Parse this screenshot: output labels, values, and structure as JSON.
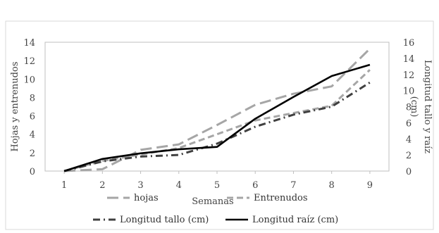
{
  "chart_data": {
    "type": "line",
    "categories": [
      "1",
      "2",
      "3",
      "4",
      "5",
      "6",
      "7",
      "8",
      "9"
    ],
    "xlabel": "Semanas",
    "ylabel_left": "Hojas y entrenudos",
    "ylabel_right": "Longitud tallo y raíz (cm)",
    "ylim_left": [
      0,
      14
    ],
    "yticks_left": [
      "0",
      "2",
      "4",
      "6",
      "8",
      "10",
      "12",
      "14"
    ],
    "ylim_right": [
      0,
      16
    ],
    "yticks_right": [
      "0",
      "2",
      "4",
      "6",
      "8",
      "10",
      "12",
      "14",
      "16"
    ],
    "grid": false,
    "legend_position": "bottom",
    "series": [
      {
        "name": "hojas",
        "axis": "left",
        "color": "#a6a6a6",
        "style": "long-dash",
        "values": [
          0,
          0.2,
          2.3,
          2.9,
          5.0,
          7.2,
          8.4,
          9.2,
          13.3
        ]
      },
      {
        "name": "Entrenudos",
        "axis": "left",
        "color": "#a6a6a6",
        "style": "dash",
        "values": [
          0,
          1.1,
          1.8,
          2.5,
          4.0,
          5.5,
          6.3,
          7.1,
          11.0
        ]
      },
      {
        "name": "Longitud tallo (cm)",
        "axis": "right",
        "color": "#404040",
        "style": "dash-dot",
        "values": [
          0,
          1.2,
          1.8,
          2.0,
          3.4,
          5.5,
          7.0,
          8.0,
          11.0
        ]
      },
      {
        "name": "Longitud raíz (cm)",
        "axis": "right",
        "color": "#000000",
        "style": "solid",
        "values": [
          0,
          1.5,
          2.2,
          2.7,
          3.0,
          6.5,
          9.2,
          11.8,
          13.2
        ]
      }
    ]
  }
}
